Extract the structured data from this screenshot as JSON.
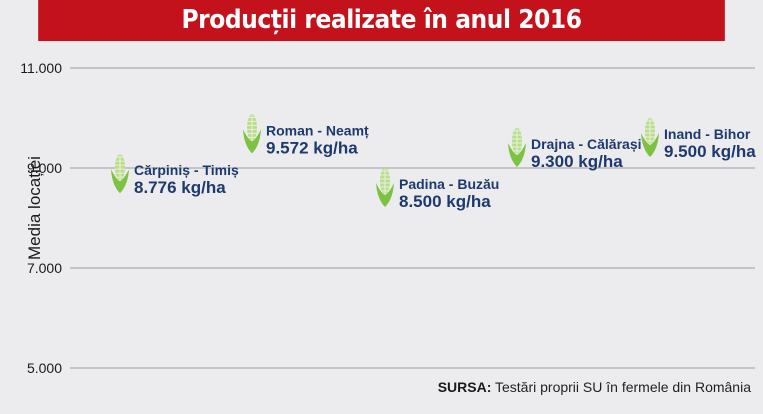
{
  "chart_data": {
    "type": "scatter",
    "title": "Producții realizate în anul 2016",
    "ylabel": "Media locației",
    "ylim": [
      5000,
      11000
    ],
    "yticks": [
      "5.000",
      "7.000",
      "9.000",
      "11.000"
    ],
    "ytick_values": [
      5000,
      7000,
      9000,
      11000
    ],
    "grid": true,
    "marker": "corn-icon",
    "points": [
      {
        "location": "Cărpiniș - Timiș",
        "value": 8776,
        "label": "8.776 kg/ha"
      },
      {
        "location": "Roman - Neamț",
        "value": 9572,
        "label": "9.572 kg/ha"
      },
      {
        "location": "Padina - Buzău",
        "value": 8500,
        "label": "8.500 kg/ha"
      },
      {
        "location": "Drajna - Călărași",
        "value": 9300,
        "label": "9.300 kg/ha"
      },
      {
        "location": "Inand - Bihor",
        "value": 9500,
        "label": "9.500 kg/ha"
      }
    ]
  },
  "source": {
    "prefix": "SURSA:",
    "text": "Testări proprii SU în fermele din România"
  },
  "colors": {
    "title_bg": "#c4121d",
    "label": "#1d3a6e",
    "corn": "#7dc243",
    "grid": "#b8b8bc"
  }
}
